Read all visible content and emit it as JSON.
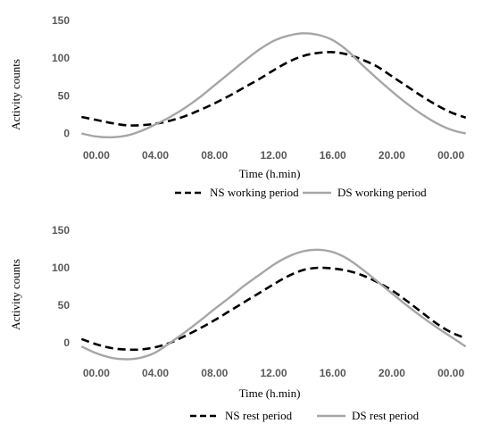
{
  "chart_data": [
    {
      "type": "line",
      "xlabel": "Time (h.min)",
      "ylabel": "Activity counts",
      "x_tick_labels": [
        "00.00",
        "04.00",
        "08.00",
        "12.00",
        "16.00",
        "20.00",
        "00.00"
      ],
      "x_tick_hours": [
        0,
        4,
        8,
        12,
        16,
        20,
        24
      ],
      "xlim": [
        -1.2,
        25.2
      ],
      "y_ticks": [
        0,
        50,
        100,
        150
      ],
      "ylim": [
        -10,
        150
      ],
      "grid": false,
      "legend": "bottom",
      "series": [
        {
          "name": "NS working period",
          "style": "dashed",
          "color": "#000000",
          "x": [
            -1,
            0,
            1,
            2,
            3,
            4,
            5,
            6,
            7,
            8,
            9,
            10,
            11,
            12,
            13,
            14,
            15,
            16,
            17,
            18,
            19,
            20,
            21,
            22,
            23,
            24,
            25
          ],
          "y": [
            22,
            18,
            14,
            11,
            11,
            13,
            17,
            23,
            31,
            40,
            50,
            61,
            72,
            84,
            95,
            103,
            107,
            108,
            105,
            98,
            89,
            76,
            63,
            50,
            38,
            28,
            21
          ]
        },
        {
          "name": "DS working period",
          "style": "solid",
          "color": "#a6a6a6",
          "x": [
            -1,
            0,
            1,
            2,
            3,
            4,
            5,
            6,
            7,
            8,
            9,
            10,
            11,
            12,
            13,
            14,
            15,
            16,
            17,
            18,
            19,
            20,
            21,
            22,
            23,
            24,
            25
          ],
          "y": [
            0,
            -4,
            -5,
            -3,
            3,
            12,
            22,
            34,
            48,
            64,
            80,
            96,
            111,
            123,
            130,
            133,
            131,
            124,
            110,
            91,
            73,
            56,
            40,
            26,
            14,
            5,
            0
          ]
        }
      ]
    },
    {
      "type": "line",
      "xlabel": "Time (h.min)",
      "ylabel": "Activity counts",
      "x_tick_labels": [
        "00.00",
        "04.00",
        "08.00",
        "12.00",
        "16.00",
        "20.00",
        "00.00"
      ],
      "x_tick_hours": [
        0,
        4,
        8,
        12,
        16,
        20,
        24
      ],
      "xlim": [
        -1.2,
        25.2
      ],
      "y_ticks": [
        0,
        50,
        100,
        150
      ],
      "ylim": [
        -25,
        150
      ],
      "grid": false,
      "legend": "bottom",
      "series": [
        {
          "name": "NS rest period",
          "style": "dashed",
          "color": "#000000",
          "x": [
            -1,
            0,
            1,
            2,
            3,
            4,
            5,
            6,
            7,
            8,
            9,
            10,
            11,
            12,
            13,
            14,
            15,
            16,
            17,
            18,
            19,
            20,
            21,
            22,
            23,
            24,
            25
          ],
          "y": [
            5,
            -2,
            -7,
            -9,
            -9,
            -6,
            0,
            9,
            19,
            30,
            42,
            54,
            66,
            78,
            89,
            97,
            100,
            99,
            96,
            90,
            81,
            70,
            56,
            41,
            26,
            14,
            6
          ]
        },
        {
          "name": "DS rest period",
          "style": "solid",
          "color": "#a6a6a6",
          "x": [
            -1,
            0,
            1,
            2,
            3,
            4,
            5,
            6,
            7,
            8,
            9,
            10,
            11,
            12,
            13,
            14,
            15,
            16,
            17,
            18,
            19,
            20,
            21,
            22,
            23,
            24,
            25
          ],
          "y": [
            -5,
            -14,
            -20,
            -22,
            -20,
            -13,
            0,
            14,
            29,
            45,
            60,
            76,
            90,
            104,
            115,
            122,
            124,
            121,
            112,
            98,
            82,
            66,
            50,
            35,
            21,
            8,
            -5
          ]
        }
      ]
    }
  ]
}
